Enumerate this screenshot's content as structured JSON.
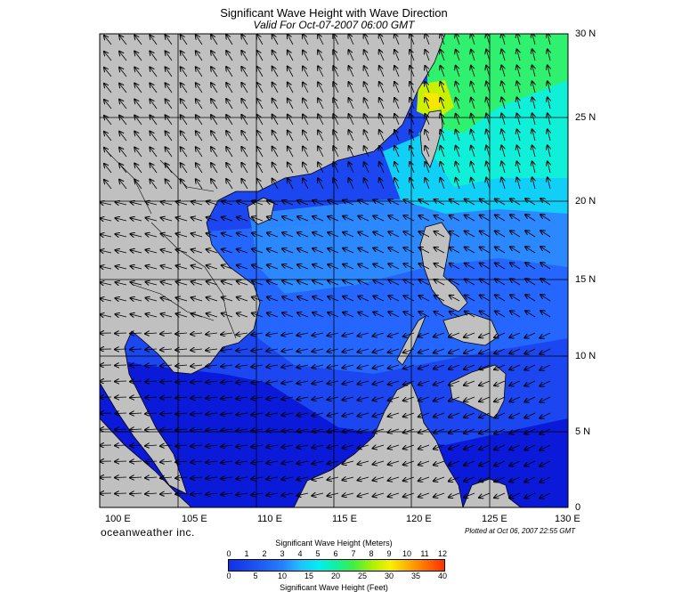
{
  "title": "Significant Wave Height with Wave Direction",
  "subtitle": "Valid For Oct-07-2007 06:00 GMT",
  "lat_labels": [
    "30 N",
    "25 N",
    "20 N",
    "15 N",
    "10 N",
    "5 N",
    "0"
  ],
  "lon_labels": [
    "100 E",
    "105 E",
    "110 E",
    "115 E",
    "120 E",
    "125 E",
    "130 E"
  ],
  "brand": "oceanweather inc.",
  "plotted": "Plotted at Oct 06, 2007 22:55 GMT",
  "colorbar": {
    "title_meters": "Significant Wave Height (Meters)",
    "title_feet": "Significant Wave Height (Feet)",
    "meters_ticks": [
      "0",
      "1",
      "2",
      "3",
      "4",
      "5",
      "6",
      "7",
      "8",
      "9",
      "10",
      "11",
      "12"
    ],
    "feet_ticks": [
      "0",
      "5",
      "10",
      "15",
      "20",
      "25",
      "30",
      "35",
      "40"
    ]
  },
  "colors": {
    "land": "#c0c0c0",
    "deep_blue": "#0a1ad8",
    "blue": "#1c46f0",
    "cyan": "#00f0f0",
    "green": "#40f040",
    "yellow": "#f8f000",
    "orange": "#ff8000"
  },
  "map_extent": {
    "lon_min": 100,
    "lon_max": 130,
    "lat_min": 0,
    "lat_max": 30
  }
}
